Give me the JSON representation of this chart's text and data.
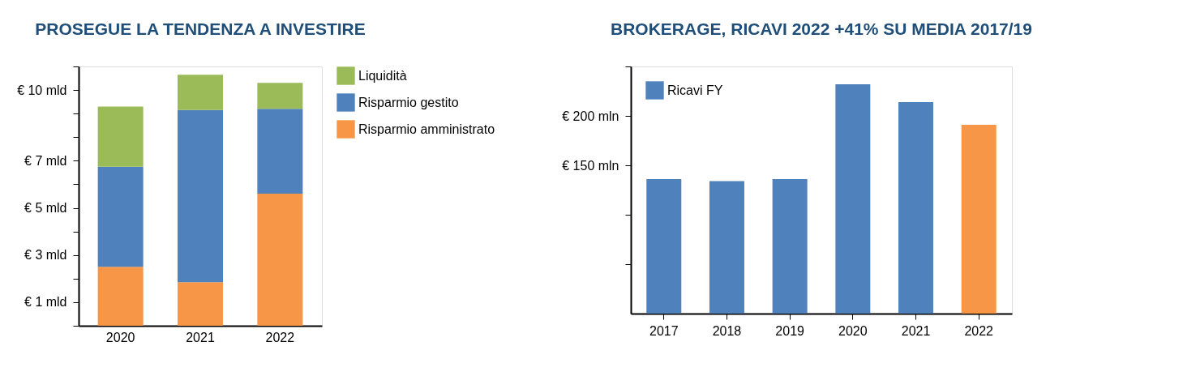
{
  "chart_data": [
    {
      "type": "bar",
      "title": "PROSEGUE LA TENDENZA A INVESTIRE",
      "stacked": true,
      "categories": [
        "2020",
        "2021",
        "2022"
      ],
      "series": [
        {
          "name": "Risparmio amministrato",
          "color": "#f79646",
          "values": [
            2.5,
            1.85,
            5.6
          ]
        },
        {
          "name": "Risparmio gestito",
          "color": "#4f81bd",
          "values": [
            4.25,
            7.3,
            3.6
          ]
        },
        {
          "name": "Liquidità",
          "color": "#9bbb59",
          "values": [
            2.55,
            1.5,
            1.1
          ]
        }
      ],
      "ylim": [
        0,
        11
      ],
      "yticks": [
        {
          "value": 0,
          "label": null
        },
        {
          "value": 1,
          "label": "€ 1 mld"
        },
        {
          "value": 2,
          "label": null
        },
        {
          "value": 3,
          "label": "€ 3 mld"
        },
        {
          "value": 4,
          "label": null
        },
        {
          "value": 5,
          "label": "€ 5 mld"
        },
        {
          "value": 6,
          "label": null
        },
        {
          "value": 7,
          "label": "€ 7 mld"
        },
        {
          "value": 8,
          "label": null
        },
        {
          "value": 9,
          "label": null
        },
        {
          "value": 10,
          "label": "€ 10 mld"
        },
        {
          "value": 11,
          "label": null
        }
      ],
      "grid": false,
      "legend": "top right"
    },
    {
      "type": "bar",
      "title": "BROKERAGE, RICAVI 2022 +41% SU MEDIA 2017/19",
      "categories": [
        "2017",
        "2018",
        "2019",
        "2020",
        "2021",
        "2022"
      ],
      "series": [
        {
          "name": "Ricavi FY",
          "color": "#4f81bd",
          "values": [
            136,
            134,
            136,
            232,
            214,
            191
          ],
          "colors": [
            "#4f81bd",
            "#4f81bd",
            "#4f81bd",
            "#4f81bd",
            "#4f81bd",
            "#f79646"
          ]
        }
      ],
      "ylim": [
        0,
        250
      ],
      "yticks": [
        {
          "value": 50,
          "label": null
        },
        {
          "value": 100,
          "label": null
        },
        {
          "value": 150,
          "label": "€ 150 mln"
        },
        {
          "value": 200,
          "label": "€ 200 mln"
        },
        {
          "value": 250,
          "label": null
        }
      ],
      "grid": false,
      "legend": "top left"
    }
  ]
}
